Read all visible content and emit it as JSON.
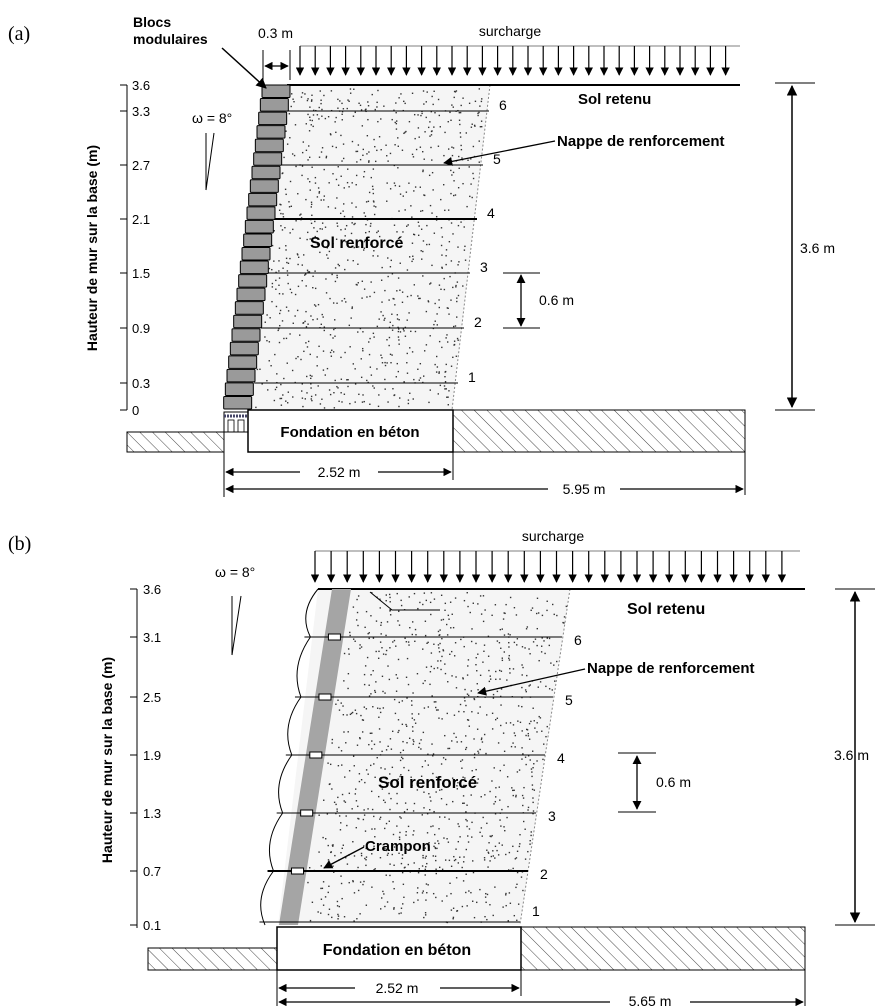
{
  "panel_a": {
    "label": "(a)",
    "blocks_label": [
      "Blocs",
      "modulaires"
    ],
    "top_width": "0.3 m",
    "surcharge": "surcharge",
    "omega": "ω = 8°",
    "y_axis_label": "Hauteur de mur sur la base (m)",
    "y_ticks": [
      "3.6",
      "3.3",
      "2.7",
      "2.1",
      "1.5",
      "0.9",
      "0.3",
      "0"
    ],
    "retained_soil": "Sol retenu",
    "reinforcement": "Nappe de renforcement",
    "reinforced_soil": "Sol renforcé",
    "spacing": "0.6 m",
    "height": "3.6 m",
    "foundation": "Fondation en béton",
    "length_reinf": "2.52 m",
    "length_total": "5.95 m",
    "layers": [
      "1",
      "2",
      "3",
      "4",
      "5",
      "6"
    ]
  },
  "panel_b": {
    "label": "(b)",
    "surcharge": "surcharge",
    "omega": "ω = 8°",
    "y_axis_label": "Hauteur de mur sur la base (m)",
    "y_ticks": [
      "3.6",
      "3.1",
      "2.5",
      "1.9",
      "1.3",
      "0.7",
      "0.1"
    ],
    "retained_soil": "Sol retenu",
    "reinforcement": "Nappe de renforcement",
    "reinforced_soil": "Sol renforcé",
    "spacing": "0.6 m",
    "height": "3.6 m",
    "crampon": "Crampon",
    "foundation": "Fondation en béton",
    "length_reinf": "2.52 m",
    "length_total": "5.65 m",
    "layers": [
      "1",
      "2",
      "3",
      "4",
      "5",
      "6"
    ]
  }
}
